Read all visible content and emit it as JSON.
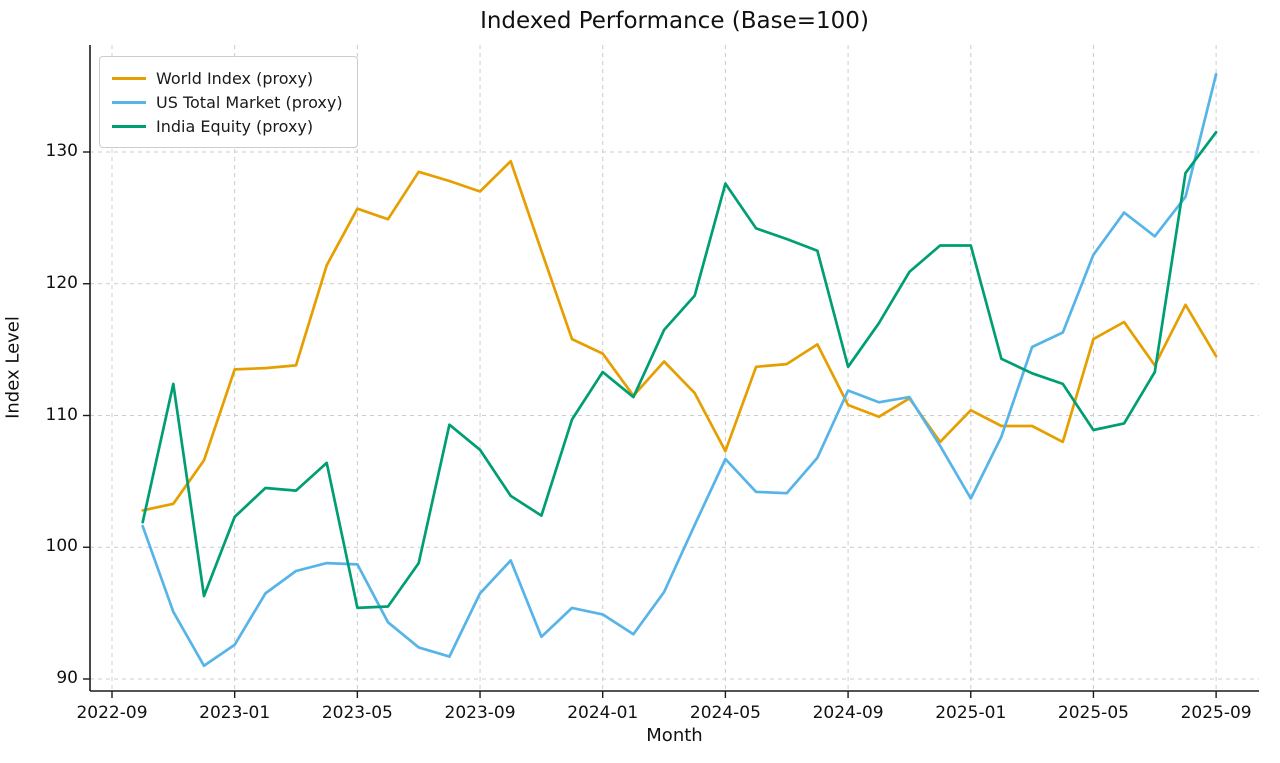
{
  "title": "Indexed Performance (Base=100)",
  "chart_data": {
    "type": "line",
    "title": "Indexed Performance (Base=100)",
    "xlabel": "Month",
    "ylabel": "Index Level",
    "x_tick_labels": [
      "2022-09",
      "2023-01",
      "2023-05",
      "2023-09",
      "2024-01",
      "2024-05",
      "2024-09",
      "2025-01",
      "2025-05",
      "2025-09"
    ],
    "y_tick_labels": [
      "90",
      "100",
      "110",
      "120",
      "130"
    ],
    "y_tick_values": [
      90,
      100,
      110,
      120,
      130
    ],
    "ylim": [
      89,
      138
    ],
    "grid": "dashed",
    "legend_position": "upper left",
    "x": [
      "2022-10",
      "2022-11",
      "2022-12",
      "2023-01",
      "2023-02",
      "2023-03",
      "2023-04",
      "2023-05",
      "2023-06",
      "2023-07",
      "2023-08",
      "2023-09",
      "2023-10",
      "2023-11",
      "2023-12",
      "2024-01",
      "2024-02",
      "2024-03",
      "2024-04",
      "2024-05",
      "2024-06",
      "2024-07",
      "2024-08",
      "2024-09",
      "2024-10",
      "2024-11",
      "2024-12",
      "2025-01",
      "2025-02",
      "2025-03",
      "2025-04",
      "2025-05",
      "2025-06",
      "2025-07",
      "2025-08",
      "2025-09"
    ],
    "series": [
      {
        "name": "World Index (proxy)",
        "color": "#E69F00",
        "values": [
          102.8,
          103.3,
          106.6,
          113.5,
          113.6,
          113.8,
          121.4,
          125.7,
          124.9,
          128.5,
          127.8,
          127.0,
          129.3,
          122.5,
          115.8,
          114.7,
          111.5,
          114.1,
          111.7,
          107.3,
          113.7,
          113.9,
          115.4,
          110.8,
          109.9,
          111.3,
          108.0,
          110.4,
          109.2,
          109.2,
          108.0,
          115.8,
          117.1,
          113.8,
          118.4,
          114.5
        ]
      },
      {
        "name": "US Total Market (proxy)",
        "color": "#56B4E9",
        "values": [
          101.6,
          95.1,
          91.0,
          92.6,
          96.5,
          98.2,
          98.8,
          98.7,
          94.3,
          92.4,
          91.7,
          96.5,
          99.0,
          93.2,
          95.4,
          94.9,
          93.4,
          96.6,
          101.7,
          106.7,
          104.2,
          104.1,
          106.8,
          111.9,
          111.0,
          111.4,
          107.7,
          103.7,
          108.4,
          115.2,
          116.3,
          122.2,
          125.4,
          123.6,
          126.6,
          135.9
        ]
      },
      {
        "name": "India Equity (proxy)",
        "color": "#009E73",
        "values": [
          101.9,
          112.4,
          96.3,
          102.3,
          104.5,
          104.3,
          106.4,
          95.4,
          95.5,
          98.8,
          109.3,
          107.4,
          103.9,
          102.4,
          109.7,
          113.3,
          111.4,
          116.5,
          119.1,
          127.6,
          124.2,
          123.4,
          122.5,
          113.7,
          117.0,
          120.9,
          122.9,
          122.9,
          114.3,
          113.2,
          112.4,
          108.9,
          109.4,
          113.3,
          128.4,
          131.5
        ]
      }
    ]
  }
}
